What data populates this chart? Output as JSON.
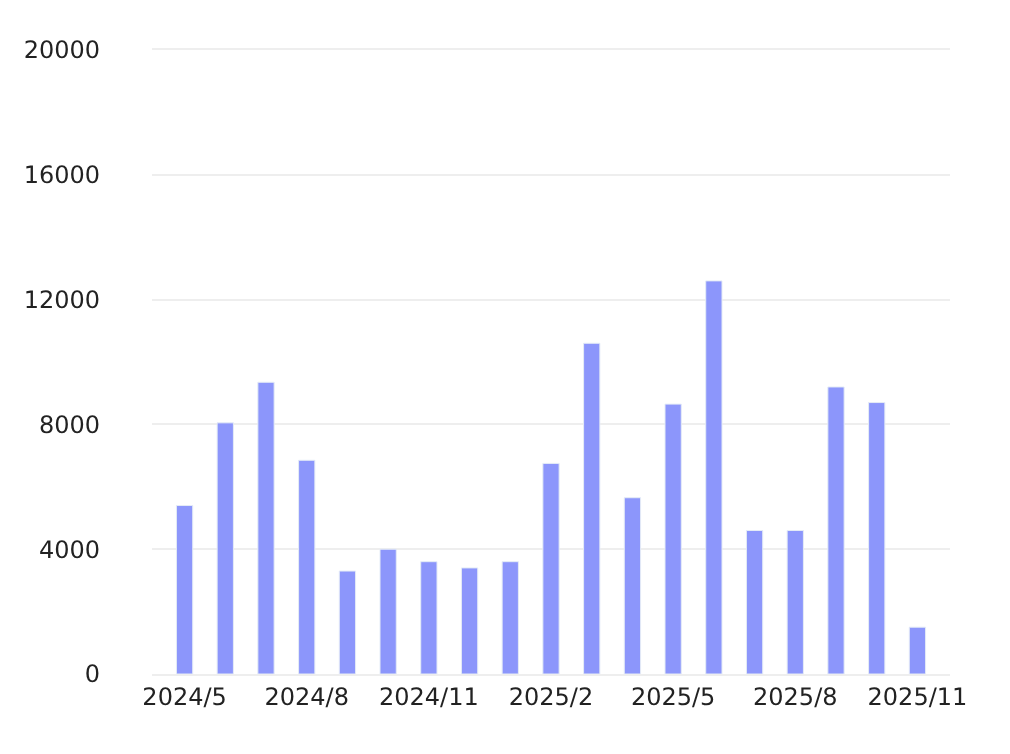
{
  "chart_data": {
    "type": "bar",
    "categories": [
      "2024/5",
      null,
      null,
      "2024/8",
      null,
      null,
      "2024/11",
      null,
      null,
      "2025/2",
      null,
      null,
      "2025/5",
      null,
      null,
      "2025/8",
      null,
      null,
      "2025/11"
    ],
    "values": [
      5400,
      8050,
      9350,
      6850,
      3300,
      4000,
      3600,
      3400,
      3600,
      6750,
      10600,
      5650,
      8650,
      12600,
      4600,
      4600,
      9200,
      8700,
      1500
    ],
    "color": "#8c96fb",
    "ylim": [
      0,
      20000
    ],
    "yticks": [
      0,
      4000,
      8000,
      12000,
      16000,
      20000
    ],
    "grid": "y"
  }
}
